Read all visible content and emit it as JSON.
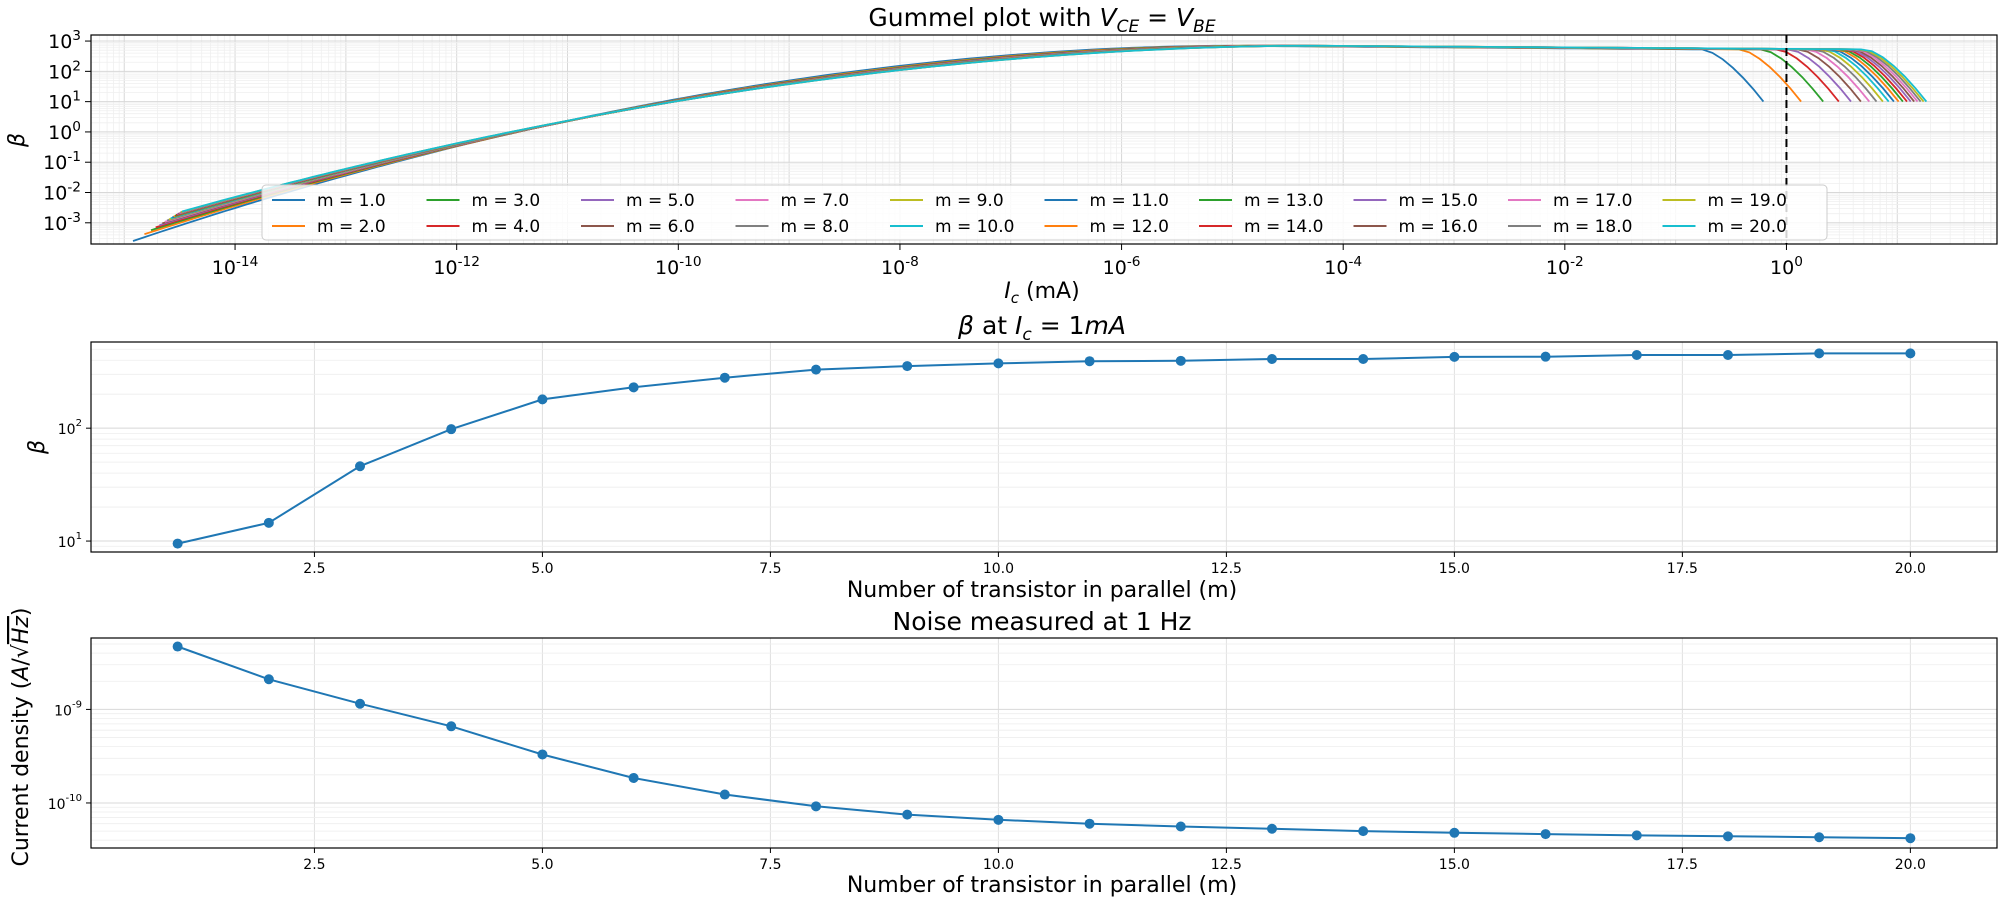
{
  "chart_data": [
    {
      "type": "line",
      "title": "Gummel plot with V_CE = V_BE",
      "title_text": "Gummel plot with ",
      "title_math": {
        "V": "V",
        "sub1": "CE",
        "eq": " = ",
        "V2": "V",
        "sub2": "BE"
      },
      "xlabel": {
        "sym": "I",
        "sub": "c",
        "unit": " (mA)"
      },
      "ylabel": "β",
      "xscale": "log",
      "yscale": "log",
      "xlim_exp": [
        -15.3,
        1.9
      ],
      "ylim_exp": [
        -3.7,
        3.2
      ],
      "x_ticks": [
        {
          "e": "-14"
        },
        {
          "e": "-12"
        },
        {
          "e": "-10"
        },
        {
          "e": "-8"
        },
        {
          "e": "-6"
        },
        {
          "e": "-4"
        },
        {
          "e": "-2"
        },
        {
          "e": "0"
        }
      ],
      "y_ticks": [
        {
          "e": "-3"
        },
        {
          "e": "-2"
        },
        {
          "e": "-1"
        },
        {
          "e": "0"
        },
        {
          "e": "1"
        },
        {
          "e": "2"
        },
        {
          "e": "3"
        }
      ],
      "tick_base": "10",
      "vline_x": 1,
      "grid": true,
      "legend": "bottom (inside axes), 10 columns",
      "curve_model": {
        "beta_max": 700,
        "rolloff_beta_end": 10,
        "start_x_m1": 1.2e-15,
        "start_beta_m1": 0.00025
      },
      "series": [
        {
          "name": "m = 1.0",
          "m": 1,
          "color": "#1f77b4"
        },
        {
          "name": "m = 2.0",
          "m": 2,
          "color": "#ff7f0e"
        },
        {
          "name": "m = 3.0",
          "m": 3,
          "color": "#2ca02c"
        },
        {
          "name": "m = 4.0",
          "m": 4,
          "color": "#d62728"
        },
        {
          "name": "m = 5.0",
          "m": 5,
          "color": "#9467bd"
        },
        {
          "name": "m = 6.0",
          "m": 6,
          "color": "#8c564b"
        },
        {
          "name": "m = 7.0",
          "m": 7,
          "color": "#e377c2"
        },
        {
          "name": "m = 8.0",
          "m": 8,
          "color": "#7f7f7f"
        },
        {
          "name": "m = 9.0",
          "m": 9,
          "color": "#bcbd22"
        },
        {
          "name": "m = 10.0",
          "m": 10,
          "color": "#17becf"
        },
        {
          "name": "m = 11.0",
          "m": 11,
          "color": "#1f77b4"
        },
        {
          "name": "m = 12.0",
          "m": 12,
          "color": "#ff7f0e"
        },
        {
          "name": "m = 13.0",
          "m": 13,
          "color": "#2ca02c"
        },
        {
          "name": "m = 14.0",
          "m": 14,
          "color": "#d62728"
        },
        {
          "name": "m = 15.0",
          "m": 15,
          "color": "#9467bd"
        },
        {
          "name": "m = 16.0",
          "m": 16,
          "color": "#8c564b"
        },
        {
          "name": "m = 17.0",
          "m": 17,
          "color": "#e377c2"
        },
        {
          "name": "m = 18.0",
          "m": 18,
          "color": "#7f7f7f"
        },
        {
          "name": "m = 19.0",
          "m": 19,
          "color": "#bcbd22"
        },
        {
          "name": "m = 20.0",
          "m": 20,
          "color": "#17becf"
        }
      ]
    },
    {
      "type": "line",
      "title": "β at I_c = 1mA",
      "title_parts": {
        "beta": "β",
        "at": " at ",
        "I": "I",
        "sub": "c",
        "eq": " = 1",
        "unit": "mA"
      },
      "xlabel": "Number of transistor in parallel (m)",
      "ylabel": "β",
      "yscale": "log",
      "xlim": [
        0.05,
        20.95
      ],
      "ylim": [
        8,
        580
      ],
      "x_ticks": [
        "2.5",
        "5.0",
        "7.5",
        "10.0",
        "12.5",
        "15.0",
        "17.5",
        "20.0"
      ],
      "y_ticks": [
        {
          "v": 10,
          "e": "1"
        },
        {
          "v": 100,
          "e": "2"
        }
      ],
      "tick_base": "10",
      "color": "#1f77b4",
      "grid": true,
      "x": [
        1,
        2,
        3,
        4,
        5,
        6,
        7,
        8,
        9,
        10,
        11,
        12,
        13,
        14,
        15,
        16,
        17,
        18,
        19,
        20
      ],
      "y": [
        9.5,
        14.5,
        46,
        98,
        180,
        230,
        280,
        330,
        355,
        375,
        392,
        395,
        410,
        410,
        428,
        430,
        445,
        445,
        460,
        460
      ]
    },
    {
      "type": "line",
      "title": "Noise measured at 1 Hz",
      "xlabel": "Number of transistor in parallel (m)",
      "ylabel": {
        "text": "Current density (",
        "A": "A",
        "slash": "/",
        "sqrt": "√",
        "Hz": "Hz",
        "close": ")"
      },
      "yscale": "log",
      "xlim": [
        0.05,
        20.95
      ],
      "ylim": [
        3.3e-11,
        5.8e-09
      ],
      "x_ticks": [
        "2.5",
        "5.0",
        "7.5",
        "10.0",
        "12.5",
        "15.0",
        "17.5",
        "20.0"
      ],
      "y_ticks": [
        {
          "v": 1e-10,
          "e": "-10"
        },
        {
          "v": 1e-09,
          "e": "-9"
        }
      ],
      "tick_base": "10",
      "color": "#1f77b4",
      "grid": true,
      "x": [
        1,
        2,
        3,
        4,
        5,
        6,
        7,
        8,
        9,
        10,
        11,
        12,
        13,
        14,
        15,
        16,
        17,
        18,
        19,
        20
      ],
      "y": [
        4.7e-09,
        2.1e-09,
        1.15e-09,
        6.6e-10,
        3.3e-10,
        1.85e-10,
        1.23e-10,
        9.2e-11,
        7.5e-11,
        6.6e-11,
        6e-11,
        5.6e-11,
        5.3e-11,
        5e-11,
        4.8e-11,
        4.65e-11,
        4.5e-11,
        4.4e-11,
        4.3e-11,
        4.2e-11
      ]
    }
  ]
}
